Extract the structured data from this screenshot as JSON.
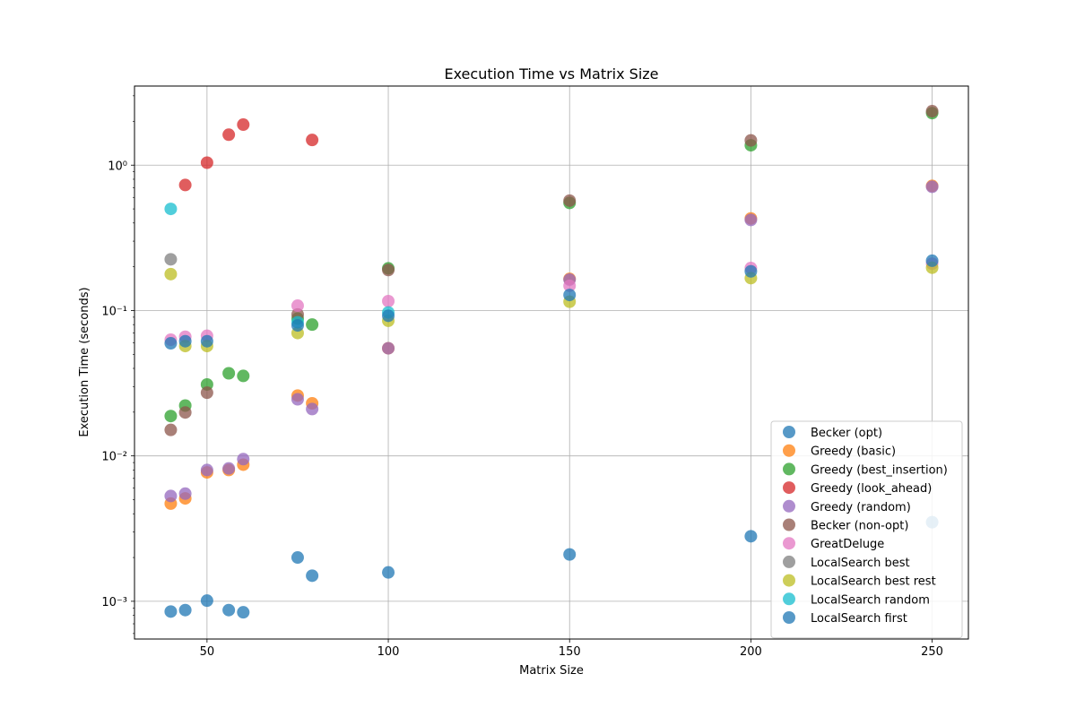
{
  "chart_data": {
    "type": "scatter",
    "title": "Execution Time vs Matrix Size",
    "xlabel": "Matrix Size",
    "ylabel": "Execution Time (seconds)",
    "xlim": [
      30,
      260
    ],
    "ylim": [
      0.00055,
      3.5
    ],
    "yscale": "log",
    "xticks": [
      50,
      100,
      150,
      200,
      250
    ],
    "xtick_labels": [
      "50",
      "100",
      "150",
      "200",
      "250"
    ],
    "yticks": [
      0.001,
      0.01,
      0.1,
      1
    ],
    "ytick_labels": [
      "10⁻³",
      "10⁻²",
      "10⁻¹",
      "10⁰"
    ],
    "grid": true,
    "legend_position": "lower-right",
    "series": [
      {
        "name": "Becker (opt)",
        "color": "#1f77b4",
        "x": [
          40,
          44,
          50,
          56,
          60,
          75,
          79,
          100,
          150,
          200,
          250
        ],
        "y": [
          0.00085,
          0.00087,
          0.00101,
          0.00087,
          0.00084,
          0.002,
          0.0015,
          0.00158,
          0.0021,
          0.0028,
          0.0035
        ]
      },
      {
        "name": "Greedy (basic)",
        "color": "#ff7f0e",
        "x": [
          40,
          44,
          50,
          56,
          60,
          75,
          79,
          100,
          150,
          200,
          250
        ],
        "y": [
          0.0047,
          0.0051,
          0.0077,
          0.008,
          0.0087,
          0.026,
          0.023,
          0.055,
          0.165,
          0.43,
          0.72
        ]
      },
      {
        "name": "Greedy (best_insertion)",
        "color": "#2ca02c",
        "x": [
          40,
          44,
          50,
          56,
          60,
          75,
          79,
          100,
          150,
          200,
          250
        ],
        "y": [
          0.0188,
          0.0222,
          0.031,
          0.037,
          0.0355,
          0.088,
          0.08,
          0.195,
          0.55,
          1.37,
          2.28
        ]
      },
      {
        "name": "Greedy (look_ahead)",
        "color": "#d62728",
        "x": [
          44,
          50,
          56,
          60,
          79
        ],
        "y": [
          0.73,
          1.04,
          1.62,
          1.9,
          1.49
        ]
      },
      {
        "name": "Greedy (random)",
        "color": "#9467bd",
        "x": [
          40,
          44,
          50,
          56,
          60,
          75,
          79,
          100,
          150,
          200,
          250
        ],
        "y": [
          0.0053,
          0.0055,
          0.008,
          0.0082,
          0.0095,
          0.0245,
          0.021,
          0.055,
          0.163,
          0.42,
          0.71
        ]
      },
      {
        "name": "Becker (non-opt)",
        "color": "#8c564b",
        "x": [
          40,
          44,
          50,
          75,
          100,
          150,
          200,
          250
        ],
        "y": [
          0.0151,
          0.0199,
          0.0272,
          0.094,
          0.19,
          0.57,
          1.48,
          2.35
        ]
      },
      {
        "name": "GreatDeluge",
        "color": "#e377c2",
        "x": [
          40,
          44,
          50,
          75,
          100,
          150,
          200,
          250
        ],
        "y": [
          0.063,
          0.066,
          0.067,
          0.108,
          0.116,
          0.148,
          0.196,
          0.21
        ]
      },
      {
        "name": "LocalSearch best",
        "color": "#7f7f7f",
        "x": [
          40
        ],
        "y": [
          0.225
        ]
      },
      {
        "name": "LocalSearch best rest",
        "color": "#bcbd22",
        "x": [
          40,
          44,
          50,
          75,
          100,
          150,
          200,
          250
        ],
        "y": [
          0.178,
          0.057,
          0.057,
          0.07,
          0.085,
          0.115,
          0.167,
          0.197
        ]
      },
      {
        "name": "LocalSearch random",
        "color": "#17becf",
        "x": [
          40,
          75,
          100
        ],
        "y": [
          0.5,
          0.083,
          0.097
        ]
      },
      {
        "name": "LocalSearch first",
        "color": "#1f77b4",
        "x": [
          40,
          44,
          50,
          75,
          100,
          150,
          200,
          250
        ],
        "y": [
          0.0595,
          0.0615,
          0.0615,
          0.079,
          0.092,
          0.128,
          0.186,
          0.22
        ]
      }
    ]
  }
}
